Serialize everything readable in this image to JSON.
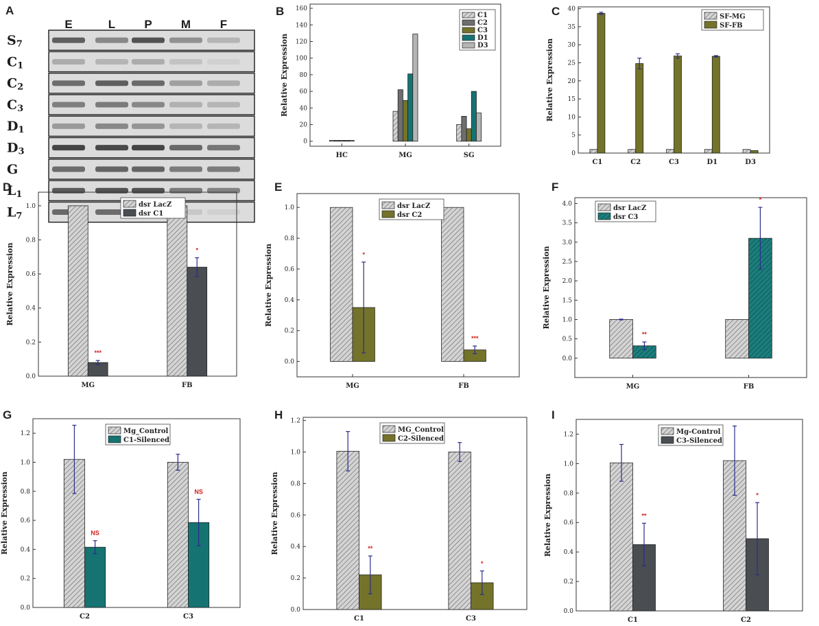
{
  "colors": {
    "hatch_grey": "#c4c4c4",
    "dark_grey": "#4a4d52",
    "mid_grey": "#707070",
    "olive": "#74732a",
    "teal": "#157372",
    "light_grey": "#b5b5b5",
    "error": "#2b2b8a",
    "sig": "#d21f1f"
  },
  "gel": {
    "letter": "A",
    "lanes": [
      "E",
      "L",
      "P",
      "M",
      "F"
    ],
    "rows": [
      {
        "label": "S",
        "sub": "7",
        "intensity": [
          0.78,
          0.55,
          0.85,
          0.5,
          0.3
        ]
      },
      {
        "label": "C",
        "sub": "1",
        "intensity": [
          0.35,
          0.3,
          0.35,
          0.22,
          0.15
        ]
      },
      {
        "label": "C",
        "sub": "2",
        "intensity": [
          0.7,
          0.78,
          0.72,
          0.42,
          0.35
        ]
      },
      {
        "label": "C",
        "sub": "3",
        "intensity": [
          0.6,
          0.62,
          0.55,
          0.32,
          0.3
        ]
      },
      {
        "label": "D",
        "sub": "1",
        "intensity": [
          0.45,
          0.55,
          0.48,
          0.3,
          0.3
        ]
      },
      {
        "label": "D",
        "sub": "3",
        "intensity": [
          0.92,
          0.9,
          0.92,
          0.72,
          0.65
        ]
      },
      {
        "label": "G",
        "sub": "",
        "intensity": [
          0.7,
          0.75,
          0.75,
          0.62,
          0.62
        ]
      },
      {
        "label": "L",
        "sub": "1",
        "intensity": [
          0.8,
          0.85,
          0.85,
          0.62,
          0.58
        ]
      },
      {
        "label": "L",
        "sub": "7",
        "intensity": [
          0.72,
          0.7,
          0.62,
          0.2,
          0.15
        ]
      }
    ]
  },
  "chart_data": [
    {
      "id": "B",
      "letter": "B",
      "type": "bar",
      "ylabel": "Relative Expression",
      "xlabel": "",
      "ylim": [
        -6,
        165
      ],
      "yticks": [
        0,
        20,
        40,
        60,
        80,
        100,
        120,
        140,
        160
      ],
      "categories": [
        "HC",
        "MG",
        "SG"
      ],
      "series": [
        {
          "name": "C1",
          "values": [
            1,
            36,
            20
          ],
          "color": "#bdbdbd",
          "hatch": true
        },
        {
          "name": "C2",
          "values": [
            1,
            62,
            30
          ],
          "color": "#6e6e6e",
          "hatch": false
        },
        {
          "name": "C3",
          "values": [
            1,
            49,
            15
          ],
          "color": "#74732a",
          "hatch": false
        },
        {
          "name": "D1",
          "values": [
            1,
            81,
            60
          ],
          "color": "#157372",
          "hatch": false
        },
        {
          "name": "D3",
          "values": [
            1,
            129,
            34
          ],
          "color": "#b5b5b5",
          "hatch": false
        }
      ],
      "legend_pos": "top-right"
    },
    {
      "id": "C",
      "letter": "C",
      "type": "bar",
      "ylabel": "Relative Expression",
      "xlabel": "",
      "ylim": [
        0,
        40.5
      ],
      "yticks": [
        0,
        5,
        10,
        15,
        20,
        25,
        30,
        35,
        40
      ],
      "categories": [
        "C1",
        "C2",
        "C3",
        "D1",
        "D3"
      ],
      "series": [
        {
          "name": "SF-MG",
          "values": [
            1,
            1,
            1,
            1,
            1
          ],
          "errors": [
            0,
            0,
            0,
            0,
            0
          ],
          "color": "#bdbdbd",
          "hatch": true
        },
        {
          "name": "SF-FB",
          "values": [
            38.7,
            24.8,
            26.9,
            26.8,
            0.7
          ],
          "errors": [
            0.3,
            1.5,
            0.6,
            0.2,
            0
          ],
          "color": "#74732a",
          "hatch": false
        }
      ],
      "legend_pos": "top-right"
    },
    {
      "id": "D",
      "letter": "D",
      "type": "bar",
      "ylabel": "Relative Expression",
      "xlabel": "",
      "ylim": [
        0,
        1.08
      ],
      "yticks": [
        0.0,
        0.2,
        0.4,
        0.6,
        0.8,
        1.0
      ],
      "tick_decimals": 1,
      "categories": [
        "MG",
        "FB"
      ],
      "series": [
        {
          "name": "dsr LacZ",
          "values": [
            1.0,
            1.0
          ],
          "errors": [
            0,
            0.025
          ],
          "color": "#c4c4c4",
          "hatch": true
        },
        {
          "name": "dsr C1",
          "values": [
            0.08,
            0.64
          ],
          "errors": [
            0.012,
            0.055
          ],
          "color": "#4a4d52",
          "hatch": false
        }
      ],
      "significance": [
        "***",
        "*"
      ],
      "legend_pos": "top-center"
    },
    {
      "id": "E",
      "letter": "E",
      "type": "bar",
      "ylabel": "Relative Expression",
      "xlabel": "",
      "ylim": [
        -0.1,
        1.09
      ],
      "yticks": [
        0.0,
        0.2,
        0.4,
        0.6,
        0.8,
        1.0
      ],
      "tick_decimals": 1,
      "categories": [
        "MG",
        "FB"
      ],
      "series": [
        {
          "name": "dsr LacZ",
          "values": [
            1.0,
            1.0
          ],
          "errors": [
            0,
            0
          ],
          "color": "#c4c4c4",
          "hatch": true
        },
        {
          "name": "dsr C2",
          "values": [
            0.35,
            0.075
          ],
          "errors": [
            0.295,
            0.025
          ],
          "color": "#74732a",
          "hatch": false
        }
      ],
      "significance": [
        "*",
        "***"
      ],
      "legend_pos": "top-center"
    },
    {
      "id": "F",
      "letter": "F",
      "type": "bar",
      "ylabel": "Relative Expression",
      "xlabel": "",
      "ylim": [
        -0.5,
        4.15
      ],
      "yticks": [
        0.0,
        0.5,
        1.0,
        1.5,
        2.0,
        2.5,
        3.0,
        3.5,
        4.0
      ],
      "tick_decimals": 1,
      "categories": [
        "MG",
        "FB"
      ],
      "series": [
        {
          "name": "dsr LacZ",
          "values": [
            1.0,
            1.0
          ],
          "errors": [
            0.01,
            0
          ],
          "color": "#c4c4c4",
          "hatch": true
        },
        {
          "name": "dsr C3",
          "values": [
            0.32,
            3.1
          ],
          "errors": [
            0.1,
            0.8
          ],
          "color": "#157372",
          "hatch": true
        }
      ],
      "significance": [
        "**",
        "*"
      ],
      "legend_pos": "top-left"
    },
    {
      "id": "G",
      "letter": "G",
      "type": "bar",
      "ylabel": "Relative Expression",
      "xlabel": "",
      "ylim": [
        0,
        1.3
      ],
      "yticks": [
        0.0,
        0.2,
        0.4,
        0.6,
        0.8,
        1.0,
        1.2
      ],
      "tick_decimals": 1,
      "categories": [
        "C2",
        "C3"
      ],
      "series": [
        {
          "name": "Mg_Control",
          "values": [
            1.02,
            1.0
          ],
          "errors": [
            0.235,
            0.055
          ],
          "color": "#c4c4c4",
          "hatch": true
        },
        {
          "name": "C1-Silenced",
          "values": [
            0.415,
            0.585
          ],
          "errors": [
            0.045,
            0.16
          ],
          "color": "#157372",
          "hatch": false
        }
      ],
      "significance": [
        "NS",
        "NS"
      ],
      "legend_pos": "top-center"
    },
    {
      "id": "H",
      "letter": "H",
      "type": "bar",
      "ylabel": "Relative Expression",
      "xlabel": "",
      "ylim": [
        0,
        1.22
      ],
      "yticks": [
        0.0,
        0.2,
        0.4,
        0.6,
        0.8,
        1.0,
        1.2
      ],
      "tick_decimals": 1,
      "categories": [
        "C1",
        "C3"
      ],
      "series": [
        {
          "name": "MG_Control",
          "values": [
            1.005,
            1.0
          ],
          "errors": [
            0.125,
            0.06
          ],
          "color": "#c4c4c4",
          "hatch": true
        },
        {
          "name": "C2-Silenced",
          "values": [
            0.22,
            0.17
          ],
          "errors": [
            0.12,
            0.075
          ],
          "color": "#74732a",
          "hatch": false
        }
      ],
      "significance": [
        "**",
        "*"
      ],
      "legend_pos": "top-center"
    },
    {
      "id": "I",
      "letter": "I",
      "type": "bar",
      "ylabel": "Relative Expression",
      "xlabel": "",
      "ylim": [
        0,
        1.3
      ],
      "yticks": [
        0.0,
        0.2,
        0.4,
        0.6,
        0.8,
        1.0,
        1.2
      ],
      "tick_decimals": 1,
      "categories": [
        "C1",
        "C2"
      ],
      "series": [
        {
          "name": "Mg-Control",
          "values": [
            1.005,
            1.02
          ],
          "errors": [
            0.125,
            0.235
          ],
          "color": "#c4c4c4",
          "hatch": true
        },
        {
          "name": "C3-Silenced",
          "values": [
            0.45,
            0.49
          ],
          "errors": [
            0.145,
            0.245
          ],
          "color": "#4a4d52",
          "hatch": false
        }
      ],
      "significance": [
        "**",
        "*"
      ],
      "legend_pos": "top-center"
    }
  ]
}
